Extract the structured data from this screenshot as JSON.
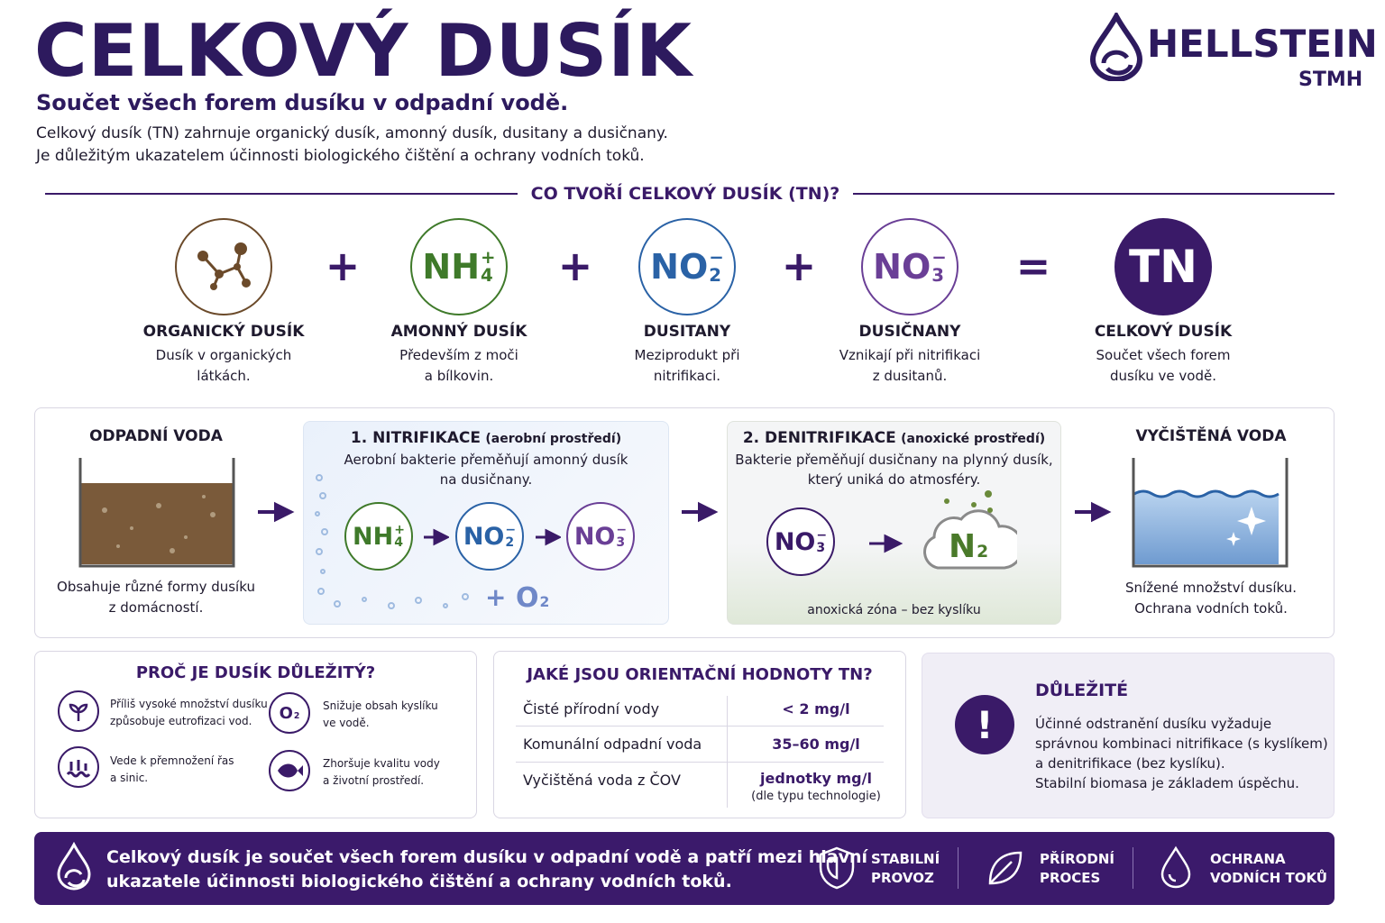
{
  "header": {
    "title": "CELKOVÝ DUSÍK",
    "subtitle": "Součet všech forem dusíku v odpadní vodě.",
    "intro": [
      "Celkový dusík (TN) zahrnuje organický dusík, amonný dusík, dusitany a dusičnany.",
      "Je důležitým ukazatelem účinnosti biologického čištění a ochrany vodních toků."
    ]
  },
  "logo": {
    "name": "HELLSTEIN",
    "sub": "STMH"
  },
  "components": {
    "heading": "CO TVOŘÍ CELKOVÝ DUSÍK (TN)?",
    "operators": [
      "+",
      "+",
      "+",
      "="
    ],
    "items": [
      {
        "name": "ORGANICKÝ DUSÍK",
        "desc": [
          "Dusík v organických",
          "látkách."
        ]
      },
      {
        "formula": {
          "base": "NH",
          "sub": "4",
          "sup": "+"
        },
        "name": "AMONNÝ DUSÍK",
        "desc": [
          "Především z moči",
          "a bílkovin."
        ]
      },
      {
        "formula": {
          "base": "NO",
          "sub": "2",
          "sup": "−"
        },
        "name": "DUSITANY",
        "desc": [
          "Meziprodukt při",
          "nitrifikaci."
        ]
      },
      {
        "formula": {
          "base": "NO",
          "sub": "3",
          "sup": "−"
        },
        "name": "DUSIČNANY",
        "desc": [
          "Vznikají při nitrifikaci",
          "z dusitanů."
        ]
      },
      {
        "formula": {
          "base": "TN"
        },
        "name": "CELKOVÝ DUSÍK",
        "desc": [
          "Součet všech forem",
          "dusíku ve vodě."
        ]
      }
    ]
  },
  "process": {
    "wastewater": {
      "title": "ODPADNÍ VODA",
      "desc": [
        "Obsahuje různé formy dusíku",
        "z domácností."
      ]
    },
    "nitrification": {
      "step": "1. NITRIFIKACE",
      "env": "(aerobní prostředí)",
      "desc": [
        "Aerobní bakterie přeměňují amonný dusík",
        "na dusičnany."
      ],
      "formulas": [
        {
          "base": "NH",
          "sub": "4",
          "sup": "+"
        },
        {
          "base": "NO",
          "sub": "2",
          "sup": "−"
        },
        {
          "base": "NO",
          "sub": "3",
          "sup": "−"
        }
      ],
      "oxygen_plus": "+",
      "oxygen": {
        "base": "O",
        "sub": "2"
      }
    },
    "denitrification": {
      "step": "2. DENITRIFIKACE",
      "env": "(anoxické prostředí)",
      "desc": [
        "Bakterie přeměňují dusičnany na plynný dusík,",
        "který uniká do atmosféry."
      ],
      "formulas": [
        {
          "base": "NO",
          "sub": "3",
          "sup": "−"
        },
        {
          "base": "N",
          "sub": "2"
        }
      ],
      "zone": "anoxická zóna – bez kyslíku"
    },
    "clean": {
      "title": "VYČIŠTĚNÁ VODA",
      "desc": [
        "Snížené množství dusíku.",
        "Ochrana vodních toků."
      ]
    }
  },
  "why": {
    "title": "PROČ JE DUSÍK DŮLEŽITÝ?",
    "items": [
      {
        "lines": [
          "Příliš vysoké množství dusíku",
          "způsobuje eutrofizaci vod."
        ]
      },
      {
        "icon_formula": {
          "base": "O",
          "sub": "2"
        },
        "lines": [
          "Snižuje obsah kyslíku",
          "ve vodě."
        ]
      },
      {
        "lines": [
          "Vede k přemnožení řas",
          "a sinic."
        ]
      },
      {
        "lines": [
          "Zhoršuje kvalitu vody",
          "a životní prostředí."
        ]
      }
    ]
  },
  "values": {
    "title": "JAKÉ JSOU ORIENTAČNÍ HODNOTY TN?",
    "rows": [
      {
        "label": "Čisté přírodní vody",
        "value": "< 2 mg/l"
      },
      {
        "label": "Komunální odpadní voda",
        "value": "35–60 mg/l"
      },
      {
        "label": "Vyčištěná voda z ČOV",
        "value": "jednotky mg/l",
        "note": "(dle typu technologie)"
      }
    ]
  },
  "important": {
    "mark": "!",
    "title": "DŮLEŽITÉ",
    "lines": [
      "Účinné odstranění dusíku vyžaduje",
      "správnou kombinaci nitrifikace (s kyslíkem)",
      "a denitrifikace (bez kyslíku).",
      "Stabilní biomasa je základem úspěchu."
    ]
  },
  "footer": {
    "text": [
      "Celkový dusík je součet všech forem dusíku v odpadní vodě a patří mezi hlavní",
      "ukazatele účinnosti biologického čištění a ochrany vodních toků."
    ],
    "badges": [
      [
        "STABILNÍ",
        "PROVOZ"
      ],
      [
        "PŘÍRODNÍ",
        "PROCES"
      ],
      [
        "OCHRANA",
        "VODNÍCH TOKŮ"
      ]
    ]
  }
}
